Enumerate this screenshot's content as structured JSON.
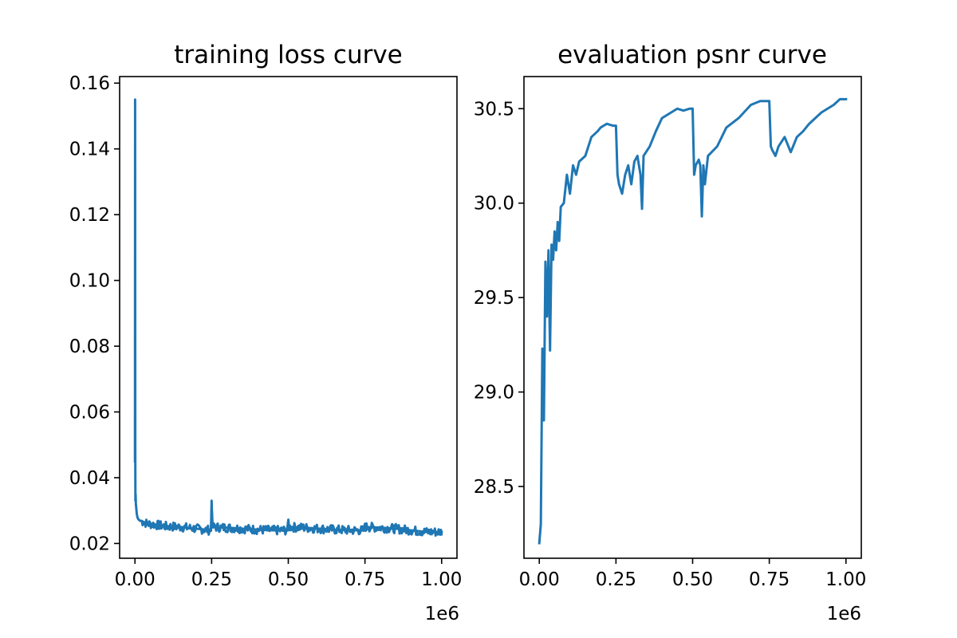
{
  "chart_data": [
    {
      "type": "line",
      "title": "training loss curve",
      "xlabel": "",
      "ylabel": "",
      "x_offset_label": "1e6",
      "xlim": [
        -0.05,
        1.05
      ],
      "ylim": [
        0.0155,
        0.162
      ],
      "x_ticks": [
        0.0,
        0.25,
        0.5,
        0.75,
        1.0
      ],
      "x_tick_labels": [
        "0.00",
        "0.25",
        "0.50",
        "0.75",
        "1.00"
      ],
      "y_ticks": [
        0.02,
        0.04,
        0.06,
        0.08,
        0.1,
        0.12,
        0.14,
        0.16
      ],
      "y_tick_labels": [
        "0.02",
        "0.04",
        "0.06",
        "0.08",
        "0.10",
        "0.12",
        "0.14",
        "0.16"
      ],
      "grid": false,
      "color": "#1f77b4",
      "series": [
        {
          "x": [
            0.0,
            0.0005,
            0.001,
            0.0015,
            0.002,
            0.003,
            0.004,
            0.005,
            0.006,
            0.008,
            0.01,
            0.015,
            0.02,
            0.03,
            0.04,
            0.06,
            0.08,
            0.1,
            0.15,
            0.2,
            0.248,
            0.25,
            0.252,
            0.3,
            0.35,
            0.4,
            0.45,
            0.498,
            0.5,
            0.502,
            0.55,
            0.6,
            0.65,
            0.7,
            0.748,
            0.75,
            0.752,
            0.8,
            0.85,
            0.9,
            0.95,
            1.0
          ],
          "values": [
            0.045,
            0.155,
            0.05,
            0.033,
            0.035,
            0.032,
            0.031,
            0.03,
            0.029,
            0.028,
            0.0275,
            0.027,
            0.0268,
            0.0265,
            0.026,
            0.0258,
            0.0255,
            0.0252,
            0.025,
            0.0245,
            0.024,
            0.033,
            0.025,
            0.0248,
            0.0245,
            0.0242,
            0.024,
            0.024,
            0.027,
            0.025,
            0.0248,
            0.0245,
            0.0242,
            0.024,
            0.024,
            0.026,
            0.025,
            0.0248,
            0.0245,
            0.024,
            0.0235,
            0.0235
          ]
        }
      ]
    },
    {
      "type": "line",
      "title": "evaluation psnr curve",
      "xlabel": "",
      "ylabel": "",
      "x_offset_label": "1e6",
      "xlim": [
        -0.05,
        1.05
      ],
      "ylim": [
        28.12,
        30.67
      ],
      "x_ticks": [
        0.0,
        0.25,
        0.5,
        0.75,
        1.0
      ],
      "x_tick_labels": [
        "0.00",
        "0.25",
        "0.50",
        "0.75",
        "1.00"
      ],
      "y_ticks": [
        28.5,
        29.0,
        29.5,
        30.0,
        30.5
      ],
      "y_tick_labels": [
        "28.5",
        "29.0",
        "29.5",
        "30.0",
        "30.5"
      ],
      "grid": false,
      "color": "#1f77b4",
      "series": [
        {
          "x": [
            0.0,
            0.005,
            0.01,
            0.015,
            0.02,
            0.025,
            0.03,
            0.035,
            0.04,
            0.045,
            0.05,
            0.055,
            0.06,
            0.065,
            0.07,
            0.08,
            0.09,
            0.1,
            0.11,
            0.12,
            0.13,
            0.15,
            0.17,
            0.19,
            0.2,
            0.22,
            0.24,
            0.25,
            0.255,
            0.26,
            0.27,
            0.28,
            0.29,
            0.3,
            0.31,
            0.32,
            0.33,
            0.335,
            0.34,
            0.36,
            0.38,
            0.4,
            0.43,
            0.45,
            0.47,
            0.49,
            0.5,
            0.505,
            0.51,
            0.52,
            0.525,
            0.53,
            0.535,
            0.54,
            0.55,
            0.58,
            0.61,
            0.65,
            0.69,
            0.72,
            0.74,
            0.75,
            0.755,
            0.76,
            0.77,
            0.78,
            0.8,
            0.82,
            0.84,
            0.86,
            0.88,
            0.9,
            0.92,
            0.94,
            0.96,
            0.98,
            0.99,
            1.0
          ],
          "values": [
            28.2,
            28.3,
            29.23,
            28.85,
            29.69,
            29.4,
            29.75,
            29.22,
            29.78,
            29.7,
            29.85,
            29.75,
            29.9,
            29.8,
            29.98,
            30.0,
            30.15,
            30.05,
            30.2,
            30.15,
            30.22,
            30.25,
            30.35,
            30.38,
            30.4,
            30.42,
            30.41,
            30.41,
            30.15,
            30.1,
            30.05,
            30.15,
            30.2,
            30.1,
            30.22,
            30.25,
            30.15,
            29.97,
            30.25,
            30.3,
            30.38,
            30.45,
            30.48,
            30.5,
            30.49,
            30.5,
            30.5,
            30.15,
            30.2,
            30.23,
            30.2,
            29.93,
            30.2,
            30.1,
            30.25,
            30.3,
            30.4,
            30.45,
            30.52,
            30.54,
            30.54,
            30.54,
            30.3,
            30.28,
            30.25,
            30.3,
            30.35,
            30.27,
            30.35,
            30.38,
            30.42,
            30.45,
            30.48,
            30.5,
            30.52,
            30.55,
            30.55,
            30.55
          ]
        }
      ]
    }
  ]
}
